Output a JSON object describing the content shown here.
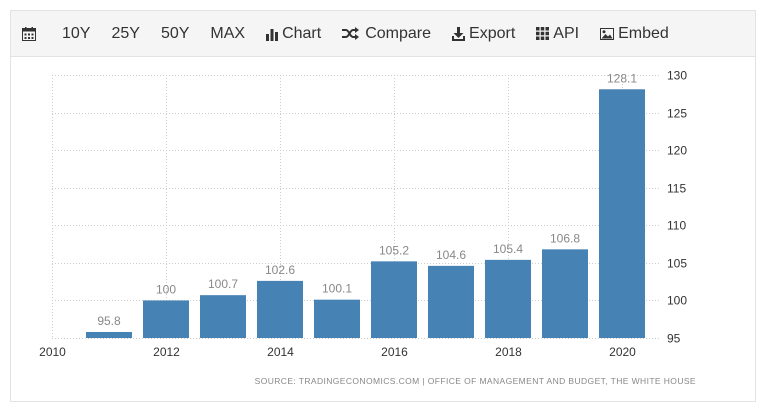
{
  "toolbar": {
    "calendar_icon": "calendar-icon",
    "range_10y": "10Y",
    "range_25y": "25Y",
    "range_50y": "50Y",
    "range_max": "MAX",
    "chart_label": "Chart",
    "compare_label": "Compare",
    "export_label": "Export",
    "api_label": "API",
    "embed_label": "Embed"
  },
  "source": "SOURCE: TRADINGECONOMICS.COM | OFFICE OF MANAGEMENT AND BUDGET, THE WHITE HOUSE",
  "colors": {
    "bar": "#4682b4",
    "label": "#888888",
    "axis_text": "#333333",
    "grid": "#cccccc"
  },
  "chart_data": {
    "type": "bar",
    "categories": [
      "2011",
      "2012",
      "2013",
      "2014",
      "2015",
      "2016",
      "2017",
      "2018",
      "2019",
      "2020"
    ],
    "values": [
      95.8,
      100,
      100.7,
      102.6,
      100.1,
      105.2,
      104.6,
      105.4,
      106.8,
      128.1
    ],
    "value_labels": [
      "95.8",
      "100",
      "100.7",
      "102.6",
      "100.1",
      "105.2",
      "104.6",
      "105.4",
      "106.8",
      "128.1"
    ],
    "x_tick_labels": [
      "2010",
      "2012",
      "2014",
      "2016",
      "2018",
      "2020"
    ],
    "x_tick_years": [
      2010,
      2012,
      2014,
      2016,
      2018,
      2020
    ],
    "y_ticks": [
      95,
      100,
      105,
      110,
      115,
      120,
      125,
      130
    ],
    "ylim": [
      95,
      130
    ],
    "y_axis_side": "right",
    "grid": true,
    "title": "",
    "xlabel": "",
    "ylabel": ""
  }
}
